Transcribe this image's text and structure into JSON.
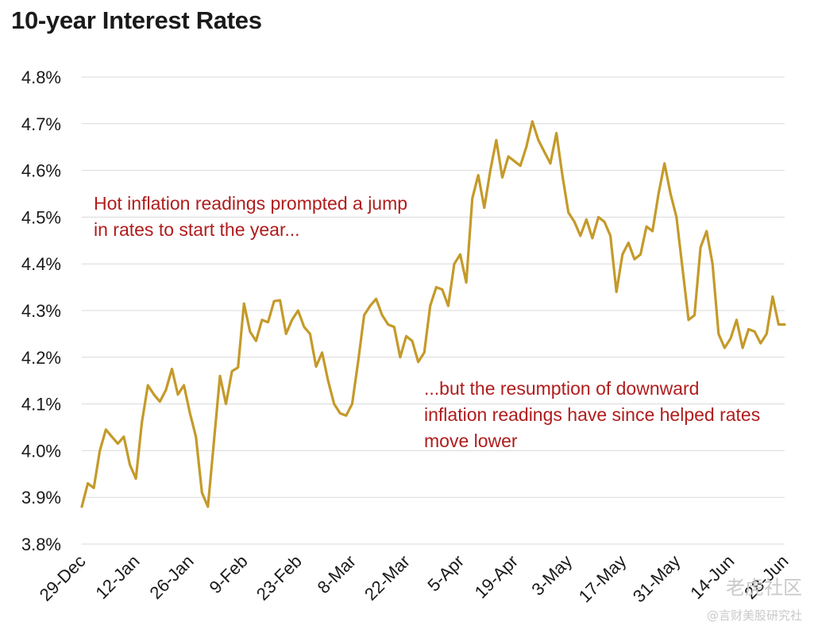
{
  "chart_data": {
    "type": "line",
    "title": "10-year Interest Rates",
    "xlabel": "",
    "ylabel": "",
    "ylim": [
      3.8,
      4.8
    ],
    "y_ticks": [
      "3.8%",
      "3.9%",
      "4.0%",
      "4.1%",
      "4.2%",
      "4.3%",
      "4.4%",
      "4.5%",
      "4.6%",
      "4.7%",
      "4.8%"
    ],
    "x_ticks": [
      "29-Dec",
      "12-Jan",
      "26-Jan",
      "9-Feb",
      "23-Feb",
      "8-Mar",
      "22-Mar",
      "5-Apr",
      "19-Apr",
      "3-May",
      "17-May",
      "31-May",
      "14-Jun",
      "28-Jun"
    ],
    "grid": "horizontal",
    "line_color": "#c49a2a",
    "series": [
      {
        "values": [
          3.88,
          3.93,
          3.92,
          4.0,
          4.045,
          4.03,
          4.015,
          4.03,
          3.97,
          3.94,
          4.06,
          4.14,
          4.12,
          4.105,
          4.13,
          4.175,
          4.12,
          4.14,
          4.08,
          4.03,
          3.91,
          3.88,
          4.02,
          4.16,
          4.1,
          4.17,
          4.178,
          4.315,
          4.255,
          4.235,
          4.28,
          4.275,
          4.32,
          4.322,
          4.25,
          4.28,
          4.3,
          4.265,
          4.25,
          4.18,
          4.21,
          4.15,
          4.1,
          4.08,
          4.075,
          4.1,
          4.19,
          4.29,
          4.31,
          4.325,
          4.29,
          4.27,
          4.265,
          4.2,
          4.245,
          4.235,
          4.19,
          4.21,
          4.31,
          4.35,
          4.345,
          4.31,
          4.4,
          4.42,
          4.36,
          4.54,
          4.59,
          4.52,
          4.6,
          4.665,
          4.585,
          4.63,
          4.62,
          4.61,
          4.65,
          4.705,
          4.665,
          4.64,
          4.615,
          4.68,
          4.59,
          4.51,
          4.49,
          4.46,
          4.495,
          4.455,
          4.5,
          4.49,
          4.46,
          4.34,
          4.42,
          4.445,
          4.41,
          4.42,
          4.48,
          4.47,
          4.55,
          4.615,
          4.55,
          4.5,
          4.39,
          4.28,
          4.29,
          4.435,
          4.47,
          4.4,
          4.25,
          4.22,
          4.24,
          4.28,
          4.22,
          4.26,
          4.255,
          4.23,
          4.25,
          4.33,
          4.27,
          4.27
        ]
      }
    ]
  },
  "annotations": {
    "top": "Hot inflation readings prompted a jump\nin rates to start the year...",
    "bottom": "...but the resumption of downward\ninflation readings have since helped rates\nmove lower"
  },
  "watermark": {
    "main": "老虎社区",
    "sub": "@言财美股研究社"
  }
}
